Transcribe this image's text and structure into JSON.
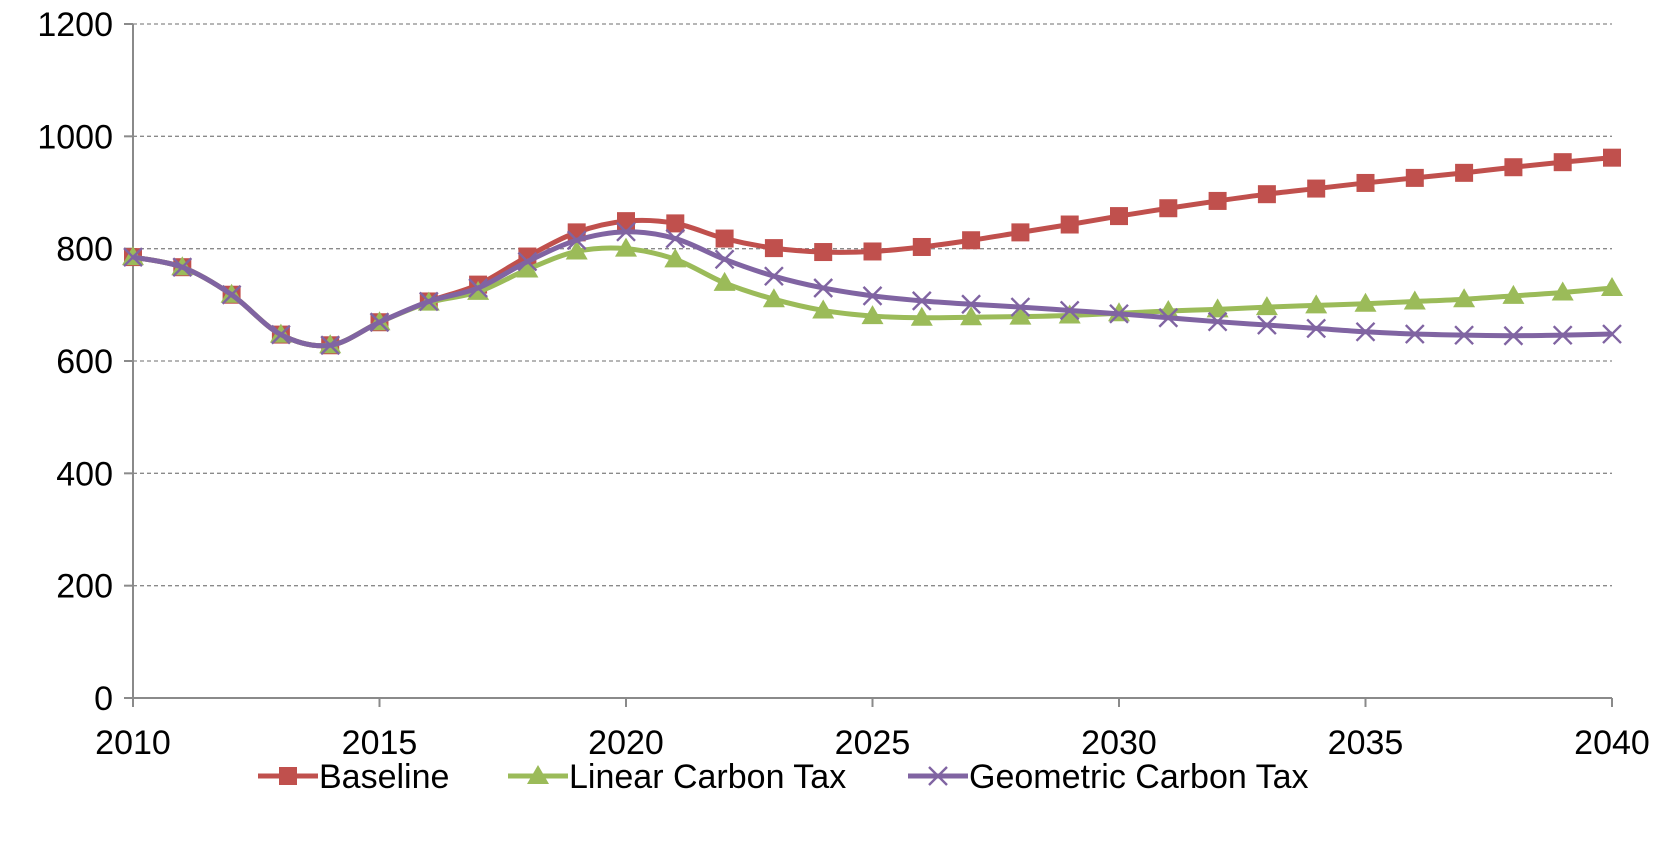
{
  "chart_data": {
    "type": "line",
    "title": "",
    "xlabel": "",
    "ylabel": "",
    "xlim": [
      2010,
      2040
    ],
    "ylim": [
      0,
      1200
    ],
    "x_ticks": [
      2010,
      2015,
      2020,
      2025,
      2030,
      2035,
      2040
    ],
    "y_ticks": [
      0,
      200,
      400,
      600,
      800,
      1000,
      1200
    ],
    "grid": "horizontal-dashed",
    "legend_position": "bottom",
    "x": [
      2010,
      2011,
      2012,
      2013,
      2014,
      2015,
      2016,
      2017,
      2018,
      2019,
      2020,
      2021,
      2022,
      2023,
      2024,
      2025,
      2026,
      2027,
      2028,
      2029,
      2030,
      2031,
      2032,
      2033,
      2034,
      2035,
      2036,
      2037,
      2038,
      2039,
      2040
    ],
    "series": [
      {
        "name": "Baseline",
        "color": "#c0504d",
        "marker": "square",
        "values": [
          785,
          767,
          718,
          647,
          628,
          669,
          706,
          736,
          786,
          829,
          849,
          845,
          818,
          801,
          794,
          795,
          803,
          815,
          829,
          843,
          858,
          872,
          885,
          897,
          907,
          917,
          926,
          935,
          945,
          954,
          962
        ]
      },
      {
        "name": "Linear Carbon Tax",
        "color": "#9bbb59",
        "marker": "triangle",
        "values": [
          785,
          767,
          718,
          647,
          628,
          669,
          704,
          723,
          763,
          795,
          800,
          781,
          739,
          710,
          690,
          680,
          677,
          678,
          679,
          681,
          685,
          689,
          692,
          696,
          699,
          702,
          706,
          710,
          716,
          722,
          730
        ]
      },
      {
        "name": "Geometric Carbon Tax",
        "color": "#8064a2",
        "marker": "x",
        "values": [
          785,
          767,
          718,
          647,
          628,
          669,
          706,
          730,
          777,
          815,
          830,
          818,
          781,
          751,
          730,
          716,
          707,
          701,
          696,
          690,
          684,
          677,
          670,
          664,
          658,
          652,
          648,
          646,
          645,
          646,
          648
        ]
      }
    ]
  }
}
